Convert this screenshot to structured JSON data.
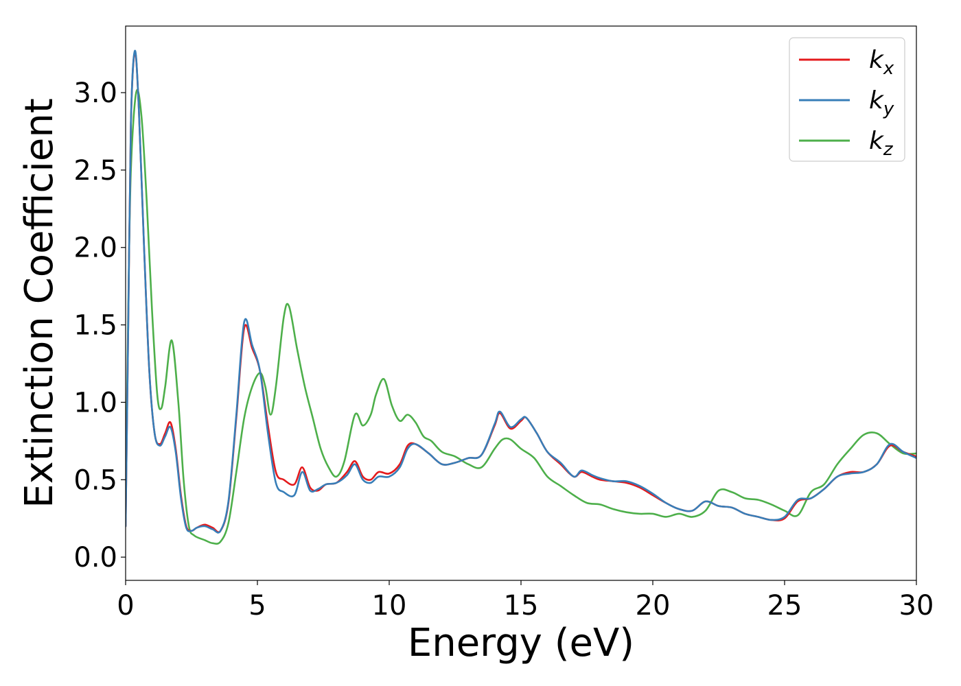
{
  "chart_data": {
    "type": "line",
    "xlabel": "Energy (eV)",
    "ylabel": "Extinction Coefficient",
    "xlim": [
      0,
      30
    ],
    "ylim": [
      -0.15,
      3.43
    ],
    "xticks": [
      0,
      5,
      10,
      15,
      20,
      25,
      30
    ],
    "xtick_labels": [
      "0",
      "5",
      "10",
      "15",
      "20",
      "25",
      "30"
    ],
    "yticks": [
      0.0,
      0.5,
      1.0,
      1.5,
      2.0,
      2.5,
      3.0
    ],
    "ytick_labels": [
      "0.0",
      "0.5",
      "1.0",
      "1.5",
      "2.0",
      "2.5",
      "3.0"
    ],
    "grid": false,
    "legend_position": "top-right",
    "series": [
      {
        "name": "k",
        "subscript": "x",
        "color": "#e41a1c",
        "x": [
          0,
          0.1,
          0.2,
          0.35,
          0.5,
          0.7,
          0.9,
          1.1,
          1.3,
          1.5,
          1.7,
          1.9,
          2.1,
          2.3,
          2.5,
          2.7,
          3.0,
          3.3,
          3.6,
          3.9,
          4.2,
          4.5,
          4.8,
          5.1,
          5.4,
          5.7,
          6.0,
          6.4,
          6.7,
          7.0,
          7.3,
          7.6,
          8.0,
          8.4,
          8.7,
          9.0,
          9.3,
          9.6,
          10.0,
          10.4,
          10.7,
          11.0,
          11.5,
          12.0,
          12.5,
          13.0,
          13.5,
          14.0,
          14.2,
          14.6,
          15.0,
          15.2,
          15.6,
          16.0,
          16.5,
          17.0,
          17.3,
          17.7,
          18.0,
          18.5,
          19.0,
          19.5,
          20.0,
          20.5,
          21.0,
          21.5,
          22.0,
          22.5,
          23.0,
          23.5,
          24.0,
          24.5,
          25.0,
          25.5,
          26.0,
          26.5,
          27.0,
          27.5,
          28.0,
          28.5,
          29.0,
          29.5,
          30.0
        ],
        "values": [
          0.2,
          1.5,
          2.8,
          3.26,
          2.9,
          2.0,
          1.2,
          0.8,
          0.73,
          0.8,
          0.87,
          0.7,
          0.4,
          0.2,
          0.17,
          0.19,
          0.21,
          0.19,
          0.17,
          0.35,
          0.9,
          1.48,
          1.35,
          1.2,
          0.85,
          0.55,
          0.5,
          0.47,
          0.58,
          0.45,
          0.43,
          0.47,
          0.48,
          0.55,
          0.62,
          0.52,
          0.5,
          0.55,
          0.54,
          0.6,
          0.72,
          0.73,
          0.67,
          0.6,
          0.61,
          0.64,
          0.66,
          0.85,
          0.93,
          0.83,
          0.88,
          0.9,
          0.8,
          0.68,
          0.6,
          0.52,
          0.55,
          0.52,
          0.5,
          0.49,
          0.48,
          0.45,
          0.4,
          0.35,
          0.31,
          0.3,
          0.36,
          0.33,
          0.32,
          0.28,
          0.26,
          0.24,
          0.25,
          0.36,
          0.38,
          0.44,
          0.52,
          0.55,
          0.55,
          0.6,
          0.72,
          0.68,
          0.65
        ]
      },
      {
        "name": "k",
        "subscript": "y",
        "color": "#377eb8",
        "x": [
          0,
          0.1,
          0.2,
          0.35,
          0.5,
          0.7,
          0.9,
          1.1,
          1.3,
          1.5,
          1.7,
          1.9,
          2.1,
          2.3,
          2.5,
          2.7,
          3.0,
          3.3,
          3.6,
          3.9,
          4.2,
          4.5,
          4.8,
          5.1,
          5.4,
          5.7,
          6.0,
          6.4,
          6.7,
          7.0,
          7.3,
          7.6,
          8.0,
          8.4,
          8.7,
          9.0,
          9.3,
          9.6,
          10.0,
          10.4,
          10.7,
          11.0,
          11.5,
          12.0,
          12.5,
          13.0,
          13.5,
          14.0,
          14.2,
          14.6,
          15.0,
          15.2,
          15.6,
          16.0,
          16.5,
          17.0,
          17.3,
          17.7,
          18.0,
          18.5,
          19.0,
          19.5,
          20.0,
          20.5,
          21.0,
          21.5,
          22.0,
          22.5,
          23.0,
          23.5,
          24.0,
          24.5,
          25.0,
          25.5,
          26.0,
          26.5,
          27.0,
          27.5,
          28.0,
          28.5,
          29.0,
          29.5,
          30.0
        ],
        "values": [
          0.2,
          1.5,
          2.8,
          3.27,
          2.9,
          2.0,
          1.2,
          0.8,
          0.72,
          0.78,
          0.84,
          0.68,
          0.38,
          0.19,
          0.17,
          0.19,
          0.2,
          0.18,
          0.17,
          0.36,
          0.92,
          1.52,
          1.37,
          1.2,
          0.8,
          0.48,
          0.42,
          0.4,
          0.55,
          0.43,
          0.44,
          0.47,
          0.48,
          0.53,
          0.6,
          0.5,
          0.48,
          0.52,
          0.52,
          0.58,
          0.7,
          0.73,
          0.67,
          0.6,
          0.61,
          0.64,
          0.66,
          0.86,
          0.94,
          0.84,
          0.89,
          0.9,
          0.8,
          0.68,
          0.61,
          0.52,
          0.56,
          0.53,
          0.51,
          0.49,
          0.49,
          0.46,
          0.41,
          0.35,
          0.31,
          0.3,
          0.36,
          0.33,
          0.32,
          0.28,
          0.26,
          0.24,
          0.26,
          0.37,
          0.38,
          0.44,
          0.52,
          0.54,
          0.55,
          0.6,
          0.73,
          0.68,
          0.64
        ]
      },
      {
        "name": "k",
        "subscript": "z",
        "color": "#4daf4a",
        "x": [
          0,
          0.1,
          0.2,
          0.4,
          0.6,
          0.8,
          1.0,
          1.2,
          1.35,
          1.5,
          1.75,
          2.0,
          2.2,
          2.4,
          2.6,
          3.0,
          3.3,
          3.6,
          3.9,
          4.2,
          4.5,
          4.8,
          5.1,
          5.3,
          5.5,
          5.7,
          6.0,
          6.2,
          6.5,
          6.8,
          7.1,
          7.4,
          7.7,
          8.0,
          8.3,
          8.7,
          9.0,
          9.3,
          9.5,
          9.8,
          10.1,
          10.4,
          10.7,
          11.0,
          11.3,
          11.6,
          12.0,
          12.5,
          13.0,
          13.5,
          14.0,
          14.3,
          14.6,
          15.0,
          15.5,
          16.0,
          16.5,
          17.0,
          17.5,
          18.0,
          18.5,
          19.0,
          19.5,
          20.0,
          20.5,
          21.0,
          21.5,
          22.0,
          22.5,
          23.0,
          23.5,
          24.0,
          24.5,
          25.0,
          25.5,
          26.0,
          26.5,
          27.0,
          27.5,
          28.0,
          28.5,
          29.0,
          29.5,
          30.0
        ],
        "values": [
          0.3,
          1.6,
          2.5,
          3.0,
          2.85,
          2.3,
          1.6,
          1.05,
          0.96,
          1.1,
          1.4,
          1.0,
          0.5,
          0.2,
          0.14,
          0.11,
          0.09,
          0.1,
          0.22,
          0.55,
          0.9,
          1.1,
          1.19,
          1.1,
          0.92,
          1.1,
          1.55,
          1.62,
          1.35,
          1.1,
          0.9,
          0.7,
          0.58,
          0.52,
          0.62,
          0.92,
          0.85,
          0.92,
          1.05,
          1.15,
          0.98,
          0.88,
          0.92,
          0.87,
          0.78,
          0.75,
          0.68,
          0.65,
          0.6,
          0.58,
          0.7,
          0.76,
          0.76,
          0.7,
          0.64,
          0.52,
          0.46,
          0.4,
          0.35,
          0.34,
          0.31,
          0.29,
          0.28,
          0.28,
          0.26,
          0.28,
          0.26,
          0.3,
          0.43,
          0.42,
          0.38,
          0.37,
          0.34,
          0.3,
          0.27,
          0.42,
          0.47,
          0.6,
          0.7,
          0.79,
          0.8,
          0.73,
          0.67,
          0.67
        ]
      }
    ]
  }
}
